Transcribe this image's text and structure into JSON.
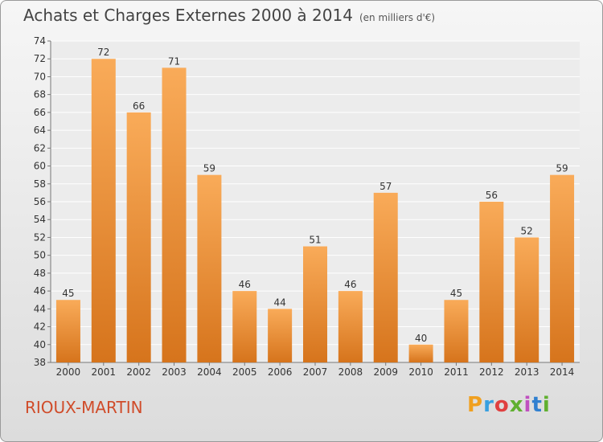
{
  "title": "Achats et Charges Externes 2000 à 2014",
  "unit": "(en milliers d'€)",
  "commune": "RIOUX-MARTIN",
  "logo": "Proxiti",
  "colors": {
    "bar_light": "#f7a857",
    "bar_dark": "#d8761e",
    "commune": "#d04c2a"
  },
  "chart_data": {
    "type": "bar",
    "title": "Achats et Charges Externes 2000 à 2014",
    "categories": [
      "2000",
      "2001",
      "2002",
      "2003",
      "2004",
      "2005",
      "2006",
      "2007",
      "2008",
      "2009",
      "2010",
      "2011",
      "2012",
      "2013",
      "2014"
    ],
    "values": [
      45,
      72,
      66,
      71,
      59,
      46,
      44,
      51,
      46,
      57,
      40,
      45,
      56,
      52,
      59
    ],
    "ylim": [
      38,
      74
    ],
    "yticks": [
      38,
      40,
      42,
      44,
      46,
      48,
      50,
      52,
      54,
      56,
      58,
      60,
      62,
      64,
      66,
      68,
      70,
      72,
      74
    ],
    "grid": true
  }
}
